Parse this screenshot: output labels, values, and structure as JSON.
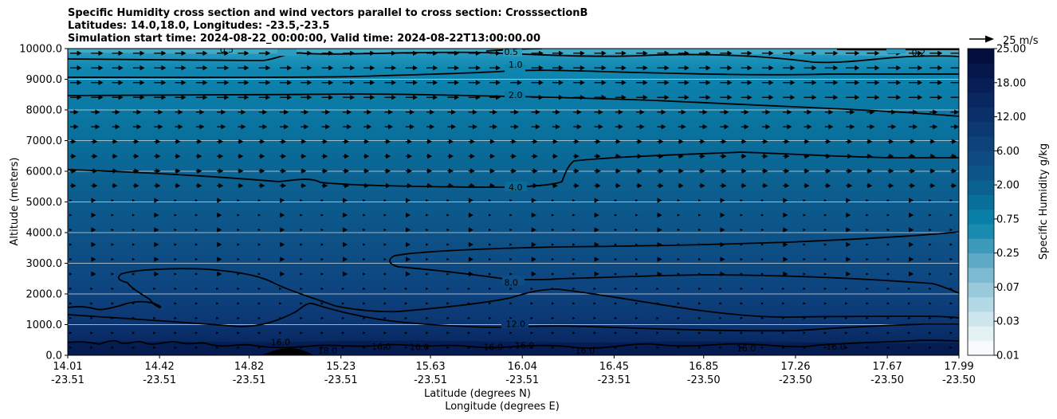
{
  "chart_data": {
    "type": "heatmap",
    "title_lines": [
      "Specific Humidity cross section and wind vectors parallel to cross section: CrosssectionB",
      "Latitudes: 14.0,18.0, Longitudes: -23.5,-23.5",
      "Simulation start time: 2024-08-22_00:00:00, Valid time: 2024-08-22T13:00:00.00"
    ],
    "ylabel": "Altitude (meters)",
    "xlabel_1": "Latitude (degrees N)",
    "xlabel_2": "Longitude (degrees E)",
    "ylim": [
      0,
      10000
    ],
    "xlim": [
      14.01,
      17.99
    ],
    "yticks": [
      "0.0",
      "1000.0",
      "2000.0",
      "3000.0",
      "4000.0",
      "5000.0",
      "6000.0",
      "7000.0",
      "8000.0",
      "9000.0",
      "10000.0"
    ],
    "xticks": [
      {
        "lat": 14.01,
        "lon": -23.51,
        "lat_label": "14.01",
        "lon_label": "-23.51"
      },
      {
        "lat": 14.42,
        "lon": -23.51,
        "lat_label": "14.42",
        "lon_label": "-23.51"
      },
      {
        "lat": 14.82,
        "lon": -23.51,
        "lat_label": "14.82",
        "lon_label": "-23.51"
      },
      {
        "lat": 15.23,
        "lon": -23.51,
        "lat_label": "15.23",
        "lon_label": "-23.51"
      },
      {
        "lat": 15.63,
        "lon": -23.51,
        "lat_label": "15.63",
        "lon_label": "-23.51"
      },
      {
        "lat": 16.04,
        "lon": -23.51,
        "lat_label": "16.04",
        "lon_label": "-23.51"
      },
      {
        "lat": 16.45,
        "lon": -23.51,
        "lat_label": "16.45",
        "lon_label": "-23.51"
      },
      {
        "lat": 16.85,
        "lon": -23.5,
        "lat_label": "16.85",
        "lon_label": "-23.50"
      },
      {
        "lat": 17.26,
        "lon": -23.5,
        "lat_label": "17.26",
        "lon_label": "-23.50"
      },
      {
        "lat": 17.67,
        "lon": -23.5,
        "lat_label": "17.67",
        "lon_label": "-23.50"
      },
      {
        "lat": 17.99,
        "lon": -23.5,
        "lat_label": "17.99",
        "lon_label": "-23.50"
      }
    ],
    "colorbar": {
      "label": "Specific Humidity g/kg",
      "ticks": [
        "0.01",
        "0.03",
        "0.07",
        "0.25",
        "0.75",
        "2.00",
        "6.00",
        "12.00",
        "18.00",
        "25.00"
      ],
      "colors": [
        "#f7fbfd",
        "#e4f1f5",
        "#cde6ee",
        "#b4d9e6",
        "#99cadc",
        "#7dbad1",
        "#5eaac6",
        "#3d9abb",
        "#1a8bb0",
        "#0a7fa8",
        "#08709b",
        "#0a6290",
        "#0c5588",
        "#0d4b82",
        "#0e427b",
        "#0d3973",
        "#0b3069",
        "#092760",
        "#071e56",
        "#05164b",
        "#040f40"
      ]
    },
    "contour_levels": [
      0.2,
      0.5,
      1.0,
      2.0,
      4.0,
      8.0,
      12.0,
      16.0,
      18.0
    ],
    "contour_labels": [
      {
        "text": "0.5",
        "lat": 14.72,
        "alt": 9980
      },
      {
        "text": "0.2",
        "lat": 17.81,
        "alt": 9870
      },
      {
        "text": "0.5",
        "lat": 15.99,
        "alt": 9900
      },
      {
        "text": "1.0",
        "lat": 16.01,
        "alt": 9480
      },
      {
        "text": "2.0",
        "lat": 16.01,
        "alt": 8490
      },
      {
        "text": "4.0",
        "lat": 16.01,
        "alt": 5480
      },
      {
        "text": "8.0",
        "lat": 15.99,
        "alt": 2380
      },
      {
        "text": "12.0",
        "lat": 16.01,
        "alt": 1020
      },
      {
        "text": "16.0",
        "lat": 14.96,
        "alt": 430
      },
      {
        "text": "18.0",
        "lat": 15.17,
        "alt": 150
      },
      {
        "text": "16.0",
        "lat": 15.41,
        "alt": 290
      },
      {
        "text": "16.0",
        "lat": 15.58,
        "alt": 270
      },
      {
        "text": "16.0",
        "lat": 15.91,
        "alt": 270
      },
      {
        "text": "16.0",
        "lat": 16.05,
        "alt": 320
      },
      {
        "text": "16.0",
        "lat": 16.32,
        "alt": 150
      },
      {
        "text": "16.0",
        "lat": 17.04,
        "alt": 230
      },
      {
        "text": "16.0",
        "lat": 17.44,
        "alt": 280
      }
    ],
    "wind_key": {
      "label": "25 m/s",
      "speed": 25
    }
  }
}
